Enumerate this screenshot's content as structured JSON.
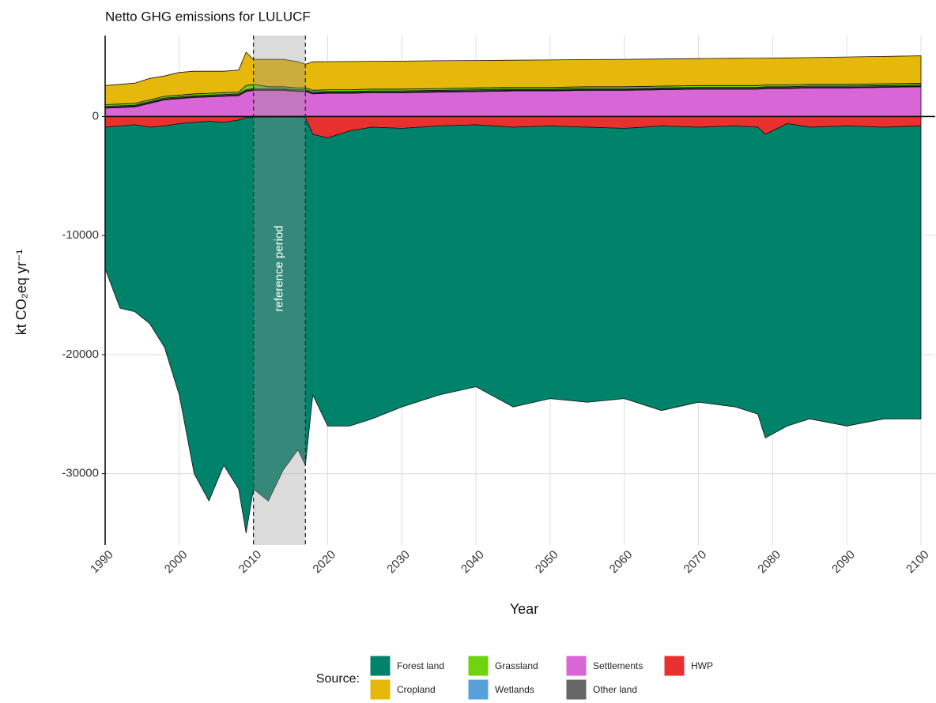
{
  "chart_data": {
    "type": "stacked_area",
    "title": "Netto GHG emissions for LULUCF",
    "x_label": "Year",
    "y_label": "kt CO₂eq yr⁻¹",
    "legend_title": "Source:",
    "annotation": {
      "label": "reference period",
      "range": [
        2010,
        2017
      ]
    },
    "x": [
      1990,
      1992,
      1994,
      1996,
      1998,
      2000,
      2002,
      2004,
      2006,
      2008,
      2009,
      2010,
      2012,
      2014,
      2016,
      2017,
      2018,
      2020,
      2023,
      2026,
      2030,
      2035,
      2040,
      2045,
      2050,
      2055,
      2060,
      2065,
      2070,
      2075,
      2078,
      2079,
      2082,
      2085,
      2090,
      2095,
      2100
    ],
    "series": [
      {
        "name": "Forest land",
        "color": "#00826b",
        "values": [
          -11900,
          -15300,
          -15700,
          -16500,
          -18600,
          -22800,
          -29500,
          -31900,
          -28800,
          -31000,
          -34900,
          -31200,
          -32200,
          -29650,
          -27900,
          -29200,
          -21900,
          -24200,
          -24800,
          -24500,
          -23400,
          -22600,
          -22000,
          -23500,
          -22900,
          -23100,
          -22700,
          -23900,
          -23100,
          -23600,
          -24100,
          -25500,
          -25400,
          -24500,
          -25200,
          -24500,
          -24600
        ]
      },
      {
        "name": "Cropland",
        "color": "#e5b80b",
        "values": [
          1600,
          1650,
          1700,
          1800,
          1700,
          1900,
          1900,
          1850,
          1800,
          1850,
          2800,
          2100,
          2300,
          2300,
          2200,
          2000,
          2400,
          2360,
          2370,
          2340,
          2350,
          2330,
          2300,
          2280,
          2300,
          2280,
          2300,
          2280,
          2260,
          2290,
          2300,
          2260,
          2270,
          2250,
          2300,
          2300,
          2300
        ]
      },
      {
        "name": "Grassland",
        "color": "#6fd40e",
        "values": [
          150,
          150,
          150,
          150,
          150,
          150,
          150,
          150,
          150,
          150,
          350,
          350,
          150,
          150,
          150,
          150,
          150,
          150,
          150,
          150,
          150,
          150,
          150,
          150,
          150,
          150,
          150,
          150,
          150,
          150,
          150,
          150,
          150,
          150,
          150,
          150,
          150
        ]
      },
      {
        "name": "Wetlands",
        "color": "#5aa0d8",
        "values": [
          50,
          50,
          50,
          50,
          50,
          50,
          50,
          50,
          50,
          50,
          50,
          50,
          50,
          50,
          50,
          50,
          50,
          50,
          50,
          50,
          50,
          50,
          50,
          50,
          50,
          50,
          50,
          50,
          50,
          50,
          50,
          50,
          50,
          50,
          50,
          50,
          50
        ]
      },
      {
        "name": "Settlements",
        "color": "#d966d6",
        "values": [
          700,
          750,
          800,
          1100,
          1400,
          1500,
          1600,
          1650,
          1700,
          1750,
          2100,
          2200,
          2200,
          2200,
          2100,
          2100,
          1900,
          1950,
          1950,
          2000,
          2000,
          2050,
          2100,
          2150,
          2150,
          2200,
          2200,
          2250,
          2300,
          2300,
          2300,
          2350,
          2350,
          2400,
          2400,
          2450,
          2500
        ]
      },
      {
        "name": "Other land",
        "color": "#666666",
        "values": [
          100,
          100,
          100,
          100,
          100,
          100,
          100,
          100,
          100,
          100,
          100,
          100,
          100,
          100,
          100,
          100,
          100,
          100,
          100,
          100,
          100,
          100,
          100,
          100,
          100,
          100,
          100,
          100,
          100,
          100,
          100,
          100,
          100,
          100,
          100,
          100,
          100
        ]
      },
      {
        "name": "HWP",
        "color": "#e8312e",
        "values": [
          -900,
          -800,
          -700,
          -900,
          -800,
          -600,
          -500,
          -400,
          -500,
          -300,
          -100,
          -100,
          -100,
          -50,
          -100,
          -100,
          -1500,
          -1800,
          -1200,
          -900,
          -1000,
          -800,
          -700,
          -900,
          -800,
          -900,
          -1000,
          -800,
          -900,
          -800,
          -900,
          -1500,
          -600,
          -900,
          -800,
          -900,
          -800
        ]
      }
    ],
    "xlim": [
      1990,
      2100
    ],
    "xticks": [
      1990,
      2000,
      2010,
      2020,
      2030,
      2040,
      2050,
      2060,
      2070,
      2080,
      2090,
      2100
    ],
    "ylim": [
      -36000,
      6800
    ],
    "yticks": [
      -30000,
      -20000,
      -10000,
      0
    ],
    "grid": true
  }
}
